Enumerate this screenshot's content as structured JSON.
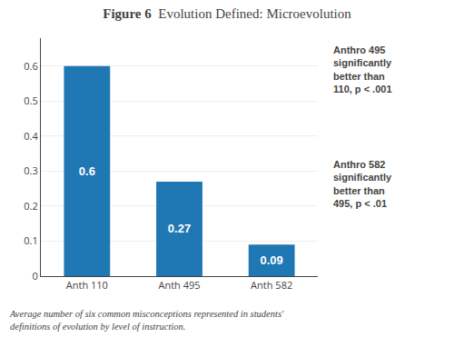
{
  "chart_data": {
    "type": "bar",
    "title": "Figure 6",
    "subtitle": "Evolution Defined: Microevolution",
    "categories": [
      "Anth 110",
      "Anth 495",
      "Anth 582"
    ],
    "values": [
      0.6,
      0.27,
      0.09
    ],
    "data_labels": true,
    "ylim": [
      0,
      0.68
    ],
    "yticks": [
      0,
      0.1,
      0.2,
      0.3,
      0.4,
      0.5,
      0.6
    ],
    "grid": true,
    "annotations": [
      "Anthro 495\nsignificantly\nbetter than\n110, p < .001",
      "Anthro 582\nsignificantly\nbetter than\n495, p < .01"
    ],
    "caption": "Average number of six common misconceptions represented in students'\ndefinitions of evolution by level of instruction."
  }
}
